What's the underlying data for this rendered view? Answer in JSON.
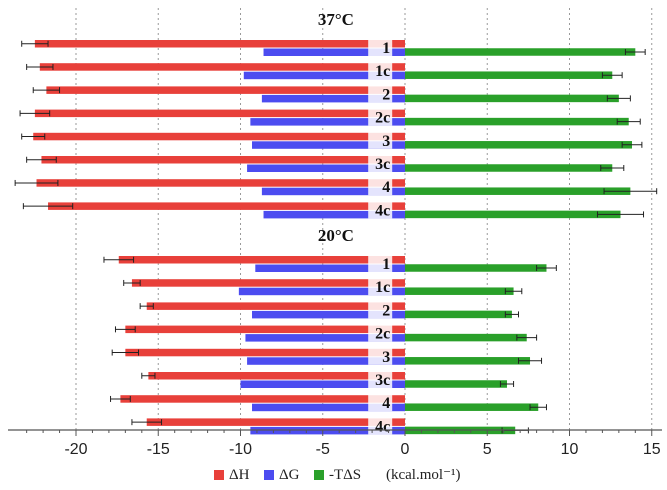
{
  "chart_data": {
    "type": "bar",
    "orientation": "horizontal",
    "units": "(kcal.mol⁻¹)",
    "xlim": [
      -23,
      15.5
    ],
    "x_ticks": [
      -20,
      -15,
      -10,
      -5,
      0,
      5,
      10,
      15
    ],
    "x_tick_labels": [
      "-20",
      "-15",
      "-10",
      "-5",
      "0",
      "5",
      "10",
      "15"
    ],
    "grid": "vertical dotted",
    "legend_position": "bottom",
    "series": [
      {
        "name": "ΔH",
        "color": "#e8403a"
      },
      {
        "name": "ΔG",
        "color": "#4c4cf0"
      },
      {
        "name": "-TΔS",
        "color": "#2aa02a"
      }
    ],
    "groups": [
      {
        "label": "37°C",
        "categories": [
          "1",
          "1c",
          "2",
          "2c",
          "3",
          "3c",
          "4",
          "4c"
        ],
        "dH": [
          -22.5,
          -22.2,
          -21.8,
          -22.5,
          -22.6,
          -22.1,
          -22.4,
          -21.7
        ],
        "dH_err": [
          0.8,
          0.8,
          0.8,
          0.9,
          0.7,
          0.9,
          1.3,
          1.5
        ],
        "dG": [
          -8.6,
          -9.8,
          -8.7,
          -9.4,
          -9.3,
          -9.6,
          -8.7,
          -8.6
        ],
        "mTdS": [
          14.0,
          12.6,
          13.0,
          13.6,
          13.8,
          12.6,
          13.7,
          13.1
        ],
        "mTdS_err": [
          0.6,
          0.6,
          0.7,
          0.7,
          0.6,
          0.7,
          1.6,
          1.4
        ]
      },
      {
        "label": "20°C",
        "categories": [
          "1",
          "1c",
          "2",
          "2c",
          "3",
          "3c",
          "4",
          "4c"
        ],
        "dH": [
          -17.4,
          -16.6,
          -15.7,
          -17.0,
          -17.0,
          -15.6,
          -17.3,
          -15.7
        ],
        "dH_err": [
          0.9,
          0.5,
          0.4,
          0.6,
          0.8,
          0.4,
          0.6,
          0.9
        ],
        "dG": [
          -9.1,
          -10.1,
          -9.3,
          -9.7,
          -9.6,
          -10.0,
          -9.3,
          -9.4
        ],
        "mTdS": [
          8.6,
          6.6,
          6.5,
          7.4,
          7.6,
          6.2,
          8.1,
          6.7
        ],
        "mTdS_err": [
          0.6,
          0.5,
          0.4,
          0.6,
          0.7,
          0.4,
          0.5,
          0.8
        ]
      }
    ]
  }
}
